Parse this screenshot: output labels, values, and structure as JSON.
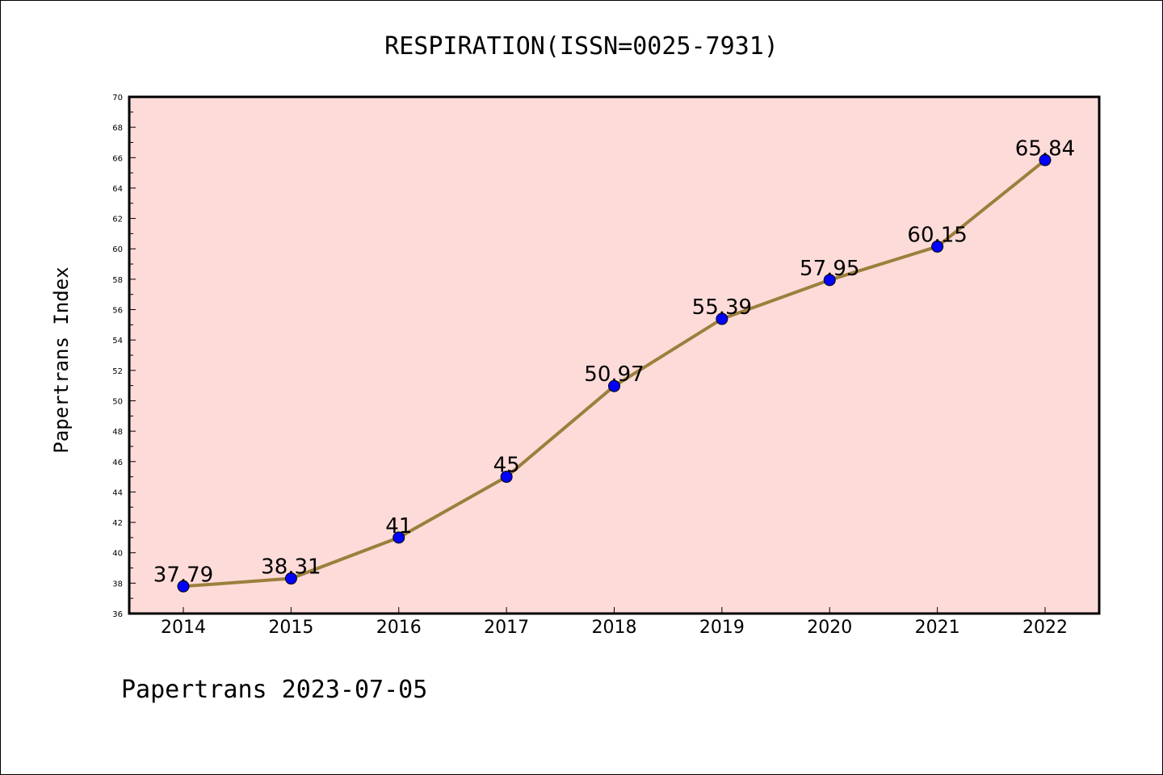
{
  "chart_data": {
    "type": "line",
    "title": "RESPIRATION(ISSN=0025-7931)",
    "ylabel": "Papertrans Index",
    "xlabel": "",
    "categories": [
      "2014",
      "2015",
      "2016",
      "2017",
      "2018",
      "2019",
      "2020",
      "2021",
      "2022"
    ],
    "series": [
      {
        "values": [
          37.79,
          38.31,
          41,
          45,
          50.97,
          55.39,
          57.95,
          60.15,
          65.84
        ],
        "labels": [
          "37.79",
          "38.31",
          "41",
          "45",
          "50.97",
          "55.39",
          "57.95",
          "60.15",
          "65.84"
        ],
        "line_color": "#9b7f3c",
        "marker_color": "#0000ff"
      }
    ],
    "ylim": [
      36,
      70
    ],
    "yticks": [
      "36",
      "38",
      "40",
      "42",
      "44",
      "46",
      "48",
      "50",
      "52",
      "54",
      "56",
      "58",
      "60",
      "62",
      "64",
      "66",
      "68",
      "70"
    ],
    "plot_background": "#fddbd9",
    "grid": false,
    "footer": "Papertrans 2023-07-05"
  }
}
